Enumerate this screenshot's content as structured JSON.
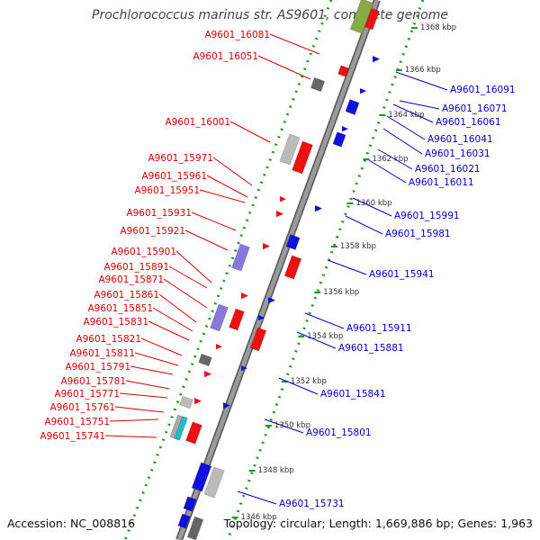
{
  "title": "Prochlorococcus marinus str. AS9601, complete genome",
  "footer": {
    "accession": "Accession: NC_008816",
    "summary": "Topology: circular; Length: 1,669,886 bp; Genes: 1,963"
  },
  "colors": {
    "forward": "#ee1111",
    "reverse": "#1111dd",
    "forward_label": "#dd0000",
    "reverse_label": "#0000cc",
    "backbone": "#8a8a8a",
    "dotted_track": "#1e9a1e"
  },
  "ticks": [
    "1346 kbp",
    "1348 kbp",
    "1350 kbp",
    "1352 kbp",
    "1354 kbp",
    "1356 kbp",
    "1358 kbp",
    "1360 kbp",
    "1362 kbp",
    "1364 kbp",
    "1366 kbp",
    "1368 kbp"
  ],
  "forward_labels": [
    "A9601_16081",
    "A9601_16051",
    "A9601_16001",
    "A9601_15971",
    "A9601_15961",
    "A9601_15951",
    "A9601_15931",
    "A9601_15921",
    "A9601_15901",
    "A9601_15891",
    "A9601_15871",
    "A9601_15861",
    "A9601_15851",
    "A9601_15831",
    "A9601_15821",
    "A9601_15811",
    "A9601_15791",
    "A9601_15781",
    "A9601_15771",
    "A9601_15761",
    "A9601_15751",
    "A9601_15741"
  ],
  "reverse_labels": [
    "A9601_16091",
    "A9601_16071",
    "A9601_16061",
    "A9601_16041",
    "A9601_16031",
    "A9601_16021",
    "A9601_16011",
    "A9601_15991",
    "A9601_15981",
    "A9601_15941",
    "A9601_15911",
    "A9601_15881",
    "A9601_15841",
    "A9601_15801",
    "A9601_15731"
  ]
}
